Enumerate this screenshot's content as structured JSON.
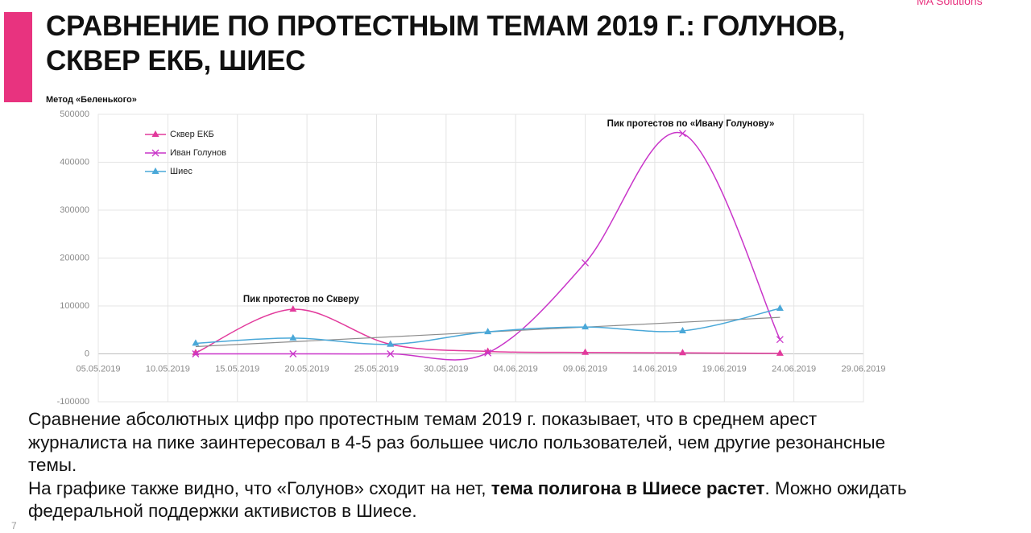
{
  "brand": "MA Solutions",
  "title_lines": [
    "СРАВНЕНИЕ ПО ПРОТЕСТНЫМ ТЕМАМ 2019 Г.: ГОЛУНОВ,",
    "СКВЕР ЕКБ, ШИЕС"
  ],
  "chart_data": {
    "type": "line",
    "subtitle": "Метод «Беленького»",
    "x": [
      "12.05.2019",
      "19.05.2019",
      "26.05.2019",
      "02.06.2019",
      "09.06.2019",
      "16.06.2019",
      "23.06.2019"
    ],
    "series": [
      {
        "name": "Сквер ЕКБ",
        "color": "#e23a9c",
        "marker": "triangle",
        "values": [
          2000,
          93000,
          20000,
          5000,
          3000,
          2000,
          1000
        ]
      },
      {
        "name": "Иван Голунов",
        "color": "#c935c9",
        "marker": "cross",
        "values": [
          0,
          0,
          0,
          2000,
          190000,
          460000,
          30000
        ]
      },
      {
        "name": "Шиес",
        "color": "#4aa8d8",
        "marker": "triangle",
        "values": [
          22000,
          33000,
          20000,
          46000,
          56000,
          48000,
          95000
        ],
        "trendline": true
      }
    ],
    "xlim": [
      "05.05.2019",
      "29.06.2019"
    ],
    "xticks": [
      "05.05.2019",
      "10.05.2019",
      "15.05.2019",
      "20.05.2019",
      "25.05.2019",
      "30.05.2019",
      "04.06.2019",
      "09.06.2019",
      "14.06.2019",
      "19.06.2019",
      "24.06.2019",
      "29.06.2019"
    ],
    "ylim": [
      -100000,
      500000
    ],
    "yticks": [
      -100000,
      0,
      100000,
      200000,
      300000,
      400000,
      500000
    ],
    "grid": true,
    "smooth": true,
    "legend": "top-left",
    "annotations": [
      {
        "text": "Пик протестов по «Ивану Голунову»",
        "x": "16.06.2019",
        "y": 460000
      },
      {
        "text": "Пик протестов по Скверу",
        "x": "19.05.2019",
        "y": 93000
      }
    ]
  },
  "body_lines": [
    [
      {
        "text": "Сравнение абсолютных цифр про протестным темам 2019 г. показывает, что в среднем арест"
      }
    ],
    [
      {
        "text": "журналиста на пике заинтересовал в 4-5 раз большее число пользователей, чем другие резонансные"
      }
    ],
    [
      {
        "text": "темы."
      }
    ],
    [
      {
        "text": "На графике также видно, что «Голунов» сходит на нет, "
      },
      {
        "text": "тема полигона в Шиесе растет",
        "bold": true
      },
      {
        "text": ". Можно ожидать"
      }
    ],
    [
      {
        "text": "федеральной поддержки активистов в Шиесе."
      }
    ]
  ],
  "page_number": "7"
}
